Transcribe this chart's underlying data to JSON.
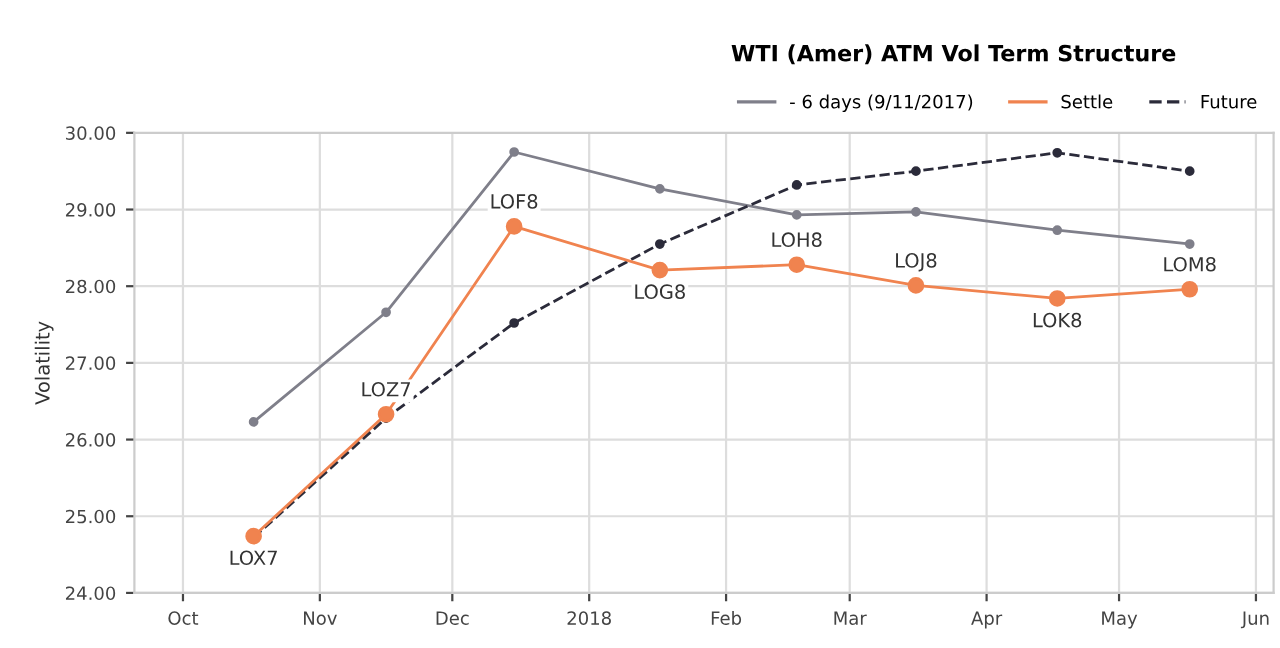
{
  "chart_data": {
    "type": "line",
    "title": "WTI (Amer) ATM Vol Term Structure",
    "ylabel": "Volatility",
    "x": [
      "2017-10-17",
      "2017-11-16",
      "2017-12-15",
      "2018-01-17",
      "2018-02-17",
      "2018-03-16",
      "2018-04-17",
      "2018-05-17"
    ],
    "series": [
      {
        "name": "- 6 days (9/11/2017)",
        "color": "#7f7f8a",
        "line_style": "solid",
        "values": [
          26.23,
          27.66,
          29.75,
          29.27,
          28.93,
          28.97,
          28.73,
          28.55
        ]
      },
      {
        "name": "Settle",
        "color": "#f0834f",
        "line_style": "solid",
        "values": [
          24.74,
          26.33,
          28.78,
          28.21,
          28.28,
          28.01,
          27.84,
          27.96
        ]
      },
      {
        "name": "Future",
        "color": "#2b2b3a",
        "line_style": "dashed",
        "values": [
          24.72,
          26.28,
          27.52,
          28.55,
          29.32,
          29.5,
          29.74,
          29.5
        ]
      }
    ],
    "annotations": [
      {
        "text": "LOX7",
        "x": "2017-10-17",
        "y": 24.74
      },
      {
        "text": "LOZ7",
        "x": "2017-11-16",
        "y": 26.33
      },
      {
        "text": "LOF8",
        "x": "2017-12-15",
        "y": 28.78
      },
      {
        "text": "LOG8",
        "x": "2018-01-17",
        "y": 28.21
      },
      {
        "text": "LOH8",
        "x": "2018-02-17",
        "y": 28.28
      },
      {
        "text": "LOJ8",
        "x": "2018-03-16",
        "y": 28.01
      },
      {
        "text": "LOK8",
        "x": "2018-04-17",
        "y": 27.84
      },
      {
        "text": "LOM8",
        "x": "2018-05-17",
        "y": 27.96
      }
    ],
    "xlim": [
      "2017-09-20",
      "2018-06-05"
    ],
    "xticks": [
      {
        "value": "2017-10-01",
        "label": "Oct"
      },
      {
        "value": "2017-11-01",
        "label": "Nov"
      },
      {
        "value": "2017-12-01",
        "label": "Dec"
      },
      {
        "value": "2018-01-01",
        "label": "2018"
      },
      {
        "value": "2018-02-01",
        "label": "Feb"
      },
      {
        "value": "2018-03-01",
        "label": "Mar"
      },
      {
        "value": "2018-04-01",
        "label": "Apr"
      },
      {
        "value": "2018-05-01",
        "label": "May"
      },
      {
        "value": "2018-06-01",
        "label": "Jun"
      }
    ],
    "ylim": [
      24,
      30
    ],
    "yticks": [
      {
        "value": 24,
        "label": "24.00"
      },
      {
        "value": 25,
        "label": "25.00"
      },
      {
        "value": 26,
        "label": "26.00"
      },
      {
        "value": 27,
        "label": "27.00"
      },
      {
        "value": 28,
        "label": "28.00"
      },
      {
        "value": 29,
        "label": "29.00"
      },
      {
        "value": 30,
        "label": "30.00"
      }
    ],
    "grid": true,
    "legend": "top right",
    "marker": "circle"
  }
}
